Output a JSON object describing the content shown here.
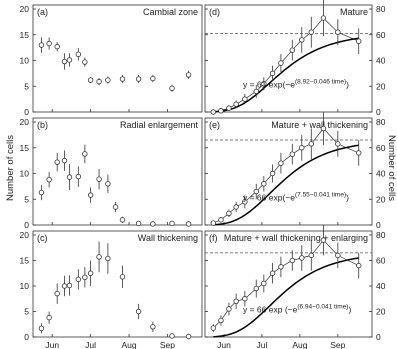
{
  "figure": {
    "ylabel_left": "Number of cells",
    "ylabel_right": "Number of cells",
    "x_tick_labels": [
      "Jun",
      "Jul",
      "Aug",
      "Sep"
    ],
    "left_ticks": [
      "0",
      "5",
      "10",
      "15",
      "20"
    ],
    "right_ticks": [
      "0",
      "20",
      "40",
      "60",
      "80"
    ],
    "colors": {
      "axis": "#333333",
      "data": "#333333",
      "model": "#000000",
      "dashed": "#555555"
    }
  },
  "chart_data": [
    {
      "type": "scatter",
      "panel": "a",
      "label": "(a)",
      "title": "Cambial zone",
      "x_month": [
        5.22,
        5.42,
        5.63,
        5.82,
        5.95,
        6.18,
        6.35,
        6.5,
        6.72,
        6.95,
        7.33,
        7.75,
        8.12,
        8.62,
        9.05
      ],
      "y": [
        13,
        13.3,
        12.7,
        9.8,
        10.1,
        11.2,
        9.7,
        6.2,
        5.9,
        6.2,
        6.4,
        6.4,
        6.5,
        4.6,
        7.2
      ],
      "err": [
        1.5,
        1.2,
        0.9,
        1.6,
        1.3,
        1.2,
        0.9,
        0.6,
        0.7,
        0.7,
        0.8,
        0.8,
        0.7,
        0.7,
        0.8
      ],
      "ylim": [
        0,
        20
      ]
    },
    {
      "type": "scatter",
      "panel": "b",
      "label": "(b)",
      "title": "Radial enlargement",
      "x_month": [
        5.22,
        5.42,
        5.63,
        5.82,
        5.95,
        6.18,
        6.35,
        6.5,
        6.72,
        6.95,
        7.15,
        7.33,
        7.75,
        8.12,
        8.62,
        9.05
      ],
      "y": [
        6.3,
        8.8,
        12.2,
        12.5,
        9.3,
        9.4,
        13.8,
        5.8,
        8.9,
        8.0,
        3.5,
        1.0,
        0.3,
        0.2,
        0.3,
        0.2
      ],
      "err": [
        1.5,
        1.5,
        1.8,
        2.0,
        2.5,
        2.0,
        1.8,
        1.5,
        2.0,
        1.8,
        1.0,
        0.6,
        0.3,
        0.2,
        0.3,
        0.2
      ],
      "ylim": [
        0,
        20
      ]
    },
    {
      "type": "scatter",
      "panel": "c",
      "label": "(c)",
      "title": "Wall thickening",
      "x_month": [
        5.22,
        5.42,
        5.63,
        5.82,
        5.95,
        6.18,
        6.35,
        6.5,
        6.72,
        6.95,
        7.33,
        7.75,
        8.12,
        8.62,
        9.05
      ],
      "y": [
        1.7,
        3.8,
        8.5,
        10.0,
        10.1,
        11.3,
        11.7,
        12.5,
        15.7,
        15.4,
        11.8,
        5.0,
        2.0,
        0.2,
        0.1
      ],
      "err": [
        1.0,
        1.2,
        2.0,
        2.0,
        2.0,
        2.0,
        2.0,
        2.5,
        3.0,
        3.0,
        2.2,
        1.5,
        1.0,
        0.2,
        0.1
      ],
      "ylim": [
        0,
        20
      ]
    },
    {
      "type": "line",
      "panel": "d",
      "label": "(d)",
      "title": "Mature",
      "equation": {
        "prefix": "y = 61 exp(−e",
        "exponent": "(8.92−0.046 time)",
        "suffix": ")"
      },
      "asymptote": 61,
      "x_month": [
        5.22,
        5.42,
        5.63,
        5.82,
        6.05,
        6.35,
        6.55,
        6.78,
        7.0,
        7.3,
        7.55,
        7.8,
        8.12,
        8.5,
        9.05
      ],
      "y": [
        0,
        1,
        3,
        6,
        10,
        16,
        22,
        30,
        38,
        48,
        56,
        62,
        73,
        62,
        55
      ],
      "err": [
        0,
        1,
        2,
        3,
        4,
        5,
        5,
        6,
        7,
        8,
        10,
        12,
        14,
        10,
        10
      ],
      "ylim": [
        0,
        80
      ]
    },
    {
      "type": "line",
      "panel": "e",
      "label": "(e)",
      "title": "Mature + wall thickening",
      "equation": {
        "prefix": "y = 66 exp(−e",
        "exponent": "(7.55−0.041 time)",
        "suffix": ")"
      },
      "asymptote": 66,
      "x_month": [
        5.22,
        5.42,
        5.63,
        5.82,
        6.05,
        6.35,
        6.55,
        6.78,
        7.0,
        7.3,
        7.55,
        7.8,
        8.12,
        8.5,
        9.05
      ],
      "y": [
        1.5,
        4,
        9,
        14,
        18,
        26,
        32,
        40,
        48,
        55,
        60,
        63,
        75,
        63,
        56
      ],
      "err": [
        1,
        2,
        3,
        4,
        5,
        6,
        6,
        7,
        8,
        8,
        10,
        12,
        13,
        10,
        10
      ],
      "ylim": [
        0,
        80
      ]
    },
    {
      "type": "line",
      "panel": "f",
      "label": "(f)",
      "title": "Mature + wall thickening + enlarging",
      "equation": {
        "prefix": "y = 66 exp (−e",
        "exponent": "(6.94−0.041 time)",
        "suffix": ")"
      },
      "asymptote": 66,
      "x_month": [
        5.22,
        5.42,
        5.63,
        5.82,
        6.05,
        6.35,
        6.55,
        6.78,
        7.0,
        7.3,
        7.55,
        7.8,
        8.12,
        8.5,
        9.05
      ],
      "y": [
        7,
        13,
        22,
        28,
        30,
        38,
        42,
        50,
        55,
        60,
        62,
        64,
        76,
        64,
        56
      ],
      "err": [
        3,
        4,
        5,
        6,
        6,
        7,
        7,
        8,
        8,
        8,
        10,
        12,
        12,
        10,
        10
      ],
      "ylim": [
        0,
        80
      ]
    }
  ]
}
